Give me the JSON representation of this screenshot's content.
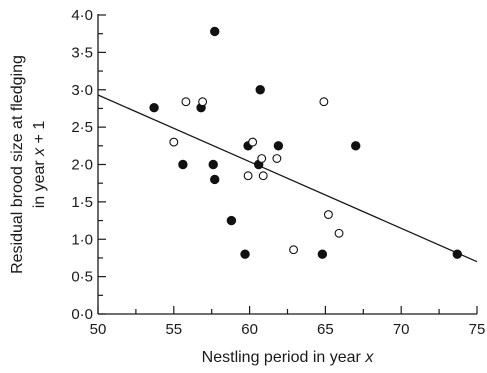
{
  "chart_data": {
    "type": "scatter",
    "xlabel_parts": [
      "Nestling period in year ",
      "x"
    ],
    "ylabel_line1": "Residual brood size at fledging",
    "ylabel_line2_parts": [
      "in year ",
      "x",
      " + 1"
    ],
    "xlim": [
      50,
      75
    ],
    "ylim": [
      0,
      4.0
    ],
    "x_ticks": [
      {
        "value": 50,
        "label": "50"
      },
      {
        "value": 55,
        "label": "55"
      },
      {
        "value": 60,
        "label": "60"
      },
      {
        "value": 65,
        "label": "65"
      },
      {
        "value": 70,
        "label": "70"
      },
      {
        "value": 75,
        "label": "75"
      }
    ],
    "x_minor_ticks": [
      52.5,
      57.5,
      62.5,
      67.5,
      72.5
    ],
    "y_ticks": [
      {
        "value": 0.0,
        "label": "0·0"
      },
      {
        "value": 0.5,
        "label": "0·5"
      },
      {
        "value": 1.0,
        "label": "1·0"
      },
      {
        "value": 1.5,
        "label": "1·5"
      },
      {
        "value": 2.0,
        "label": "2·0"
      },
      {
        "value": 2.5,
        "label": "2·5"
      },
      {
        "value": 3.0,
        "label": "3·0"
      },
      {
        "value": 3.5,
        "label": "3·5"
      },
      {
        "value": 4.0,
        "label": "4·0"
      }
    ],
    "y_minor_ticks": [
      0.25,
      0.75,
      1.25,
      1.75,
      2.25,
      2.75,
      3.25,
      3.75
    ],
    "series": [
      {
        "marker": "filled-circle",
        "points": [
          {
            "x": 53.7,
            "y": 2.76
          },
          {
            "x": 55.6,
            "y": 2.0
          },
          {
            "x": 56.8,
            "y": 2.76
          },
          {
            "x": 57.6,
            "y": 2.0
          },
          {
            "x": 57.7,
            "y": 1.8
          },
          {
            "x": 57.7,
            "y": 3.78
          },
          {
            "x": 58.8,
            "y": 1.25
          },
          {
            "x": 59.7,
            "y": 0.8
          },
          {
            "x": 59.9,
            "y": 2.25
          },
          {
            "x": 60.6,
            "y": 2.0
          },
          {
            "x": 60.7,
            "y": 3.0
          },
          {
            "x": 61.9,
            "y": 2.25
          },
          {
            "x": 64.8,
            "y": 0.8
          },
          {
            "x": 67.0,
            "y": 2.25
          },
          {
            "x": 73.7,
            "y": 0.8
          }
        ]
      },
      {
        "marker": "open-circle",
        "points": [
          {
            "x": 55.0,
            "y": 2.3
          },
          {
            "x": 55.8,
            "y": 2.84
          },
          {
            "x": 56.9,
            "y": 2.84
          },
          {
            "x": 59.9,
            "y": 1.85
          },
          {
            "x": 60.2,
            "y": 2.3
          },
          {
            "x": 60.8,
            "y": 2.08
          },
          {
            "x": 60.9,
            "y": 1.85
          },
          {
            "x": 61.8,
            "y": 2.08
          },
          {
            "x": 62.9,
            "y": 0.86
          },
          {
            "x": 64.9,
            "y": 2.84
          },
          {
            "x": 65.2,
            "y": 1.33
          },
          {
            "x": 65.9,
            "y": 1.08
          }
        ]
      }
    ],
    "trend_line": {
      "x1": 50,
      "y1": 2.93,
      "x2": 75,
      "y2": 0.7
    },
    "grid": false,
    "legend": "none"
  }
}
